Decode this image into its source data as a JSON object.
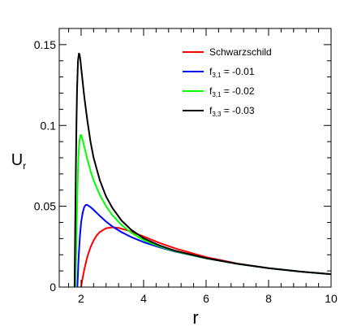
{
  "chart_data": {
    "type": "line",
    "xlabel": "r",
    "ylabel": {
      "main": "U",
      "sub": "r"
    },
    "xlim": [
      1.3,
      10
    ],
    "ylim": [
      0,
      0.16
    ],
    "xticks": [
      2,
      4,
      6,
      8,
      10
    ],
    "xtick_labels": [
      "2",
      "4",
      "6",
      "8",
      "10"
    ],
    "yticks": [
      0,
      0.05,
      0.1,
      0.15
    ],
    "ytick_labels": [
      "0",
      "0.05",
      "0.1",
      "0.15"
    ],
    "grid": false,
    "legend_position": "top-right",
    "series": [
      {
        "name": "Schwarzschild",
        "legend": {
          "main": "Schwarzschild",
          "sub": "",
          "rest": ""
        },
        "color": "#ff0000",
        "x": [
          2.0,
          2.05,
          2.1,
          2.2,
          2.3,
          2.4,
          2.5,
          2.6,
          2.8,
          3.0,
          3.2,
          3.5,
          4.0,
          4.5,
          5.0,
          6.0,
          7.0,
          8.0,
          9.0,
          10.0
        ],
        "y": [
          0.0,
          0.0057,
          0.0108,
          0.0188,
          0.0246,
          0.0289,
          0.032,
          0.0341,
          0.0364,
          0.037,
          0.0366,
          0.035,
          0.0313,
          0.0274,
          0.024,
          0.0185,
          0.0146,
          0.0117,
          0.0096,
          0.008
        ]
      },
      {
        "name": "f3,1 = -0.01",
        "legend": {
          "main": "f",
          "sub": "3,1",
          "rest": " = -0.01"
        },
        "color": "#0000ff",
        "x": [
          1.88,
          1.92,
          1.96,
          2.0,
          2.05,
          2.1,
          2.15,
          2.2,
          2.3,
          2.4,
          2.6,
          2.8,
          3.0,
          3.3,
          3.6,
          4.0,
          4.5,
          5.0,
          6.0,
          7.0,
          8.0,
          9.0,
          10.0
        ],
        "y": [
          0.0,
          0.018,
          0.031,
          0.04,
          0.046,
          0.0495,
          0.0508,
          0.0508,
          0.0495,
          0.0478,
          0.044,
          0.0405,
          0.0375,
          0.0339,
          0.031,
          0.0278,
          0.0247,
          0.022,
          0.0178,
          0.0144,
          0.0117,
          0.0096,
          0.008
        ]
      },
      {
        "name": "f3,1 = -0.02",
        "legend": {
          "main": "f",
          "sub": "3,1",
          "rest": " = -0.02"
        },
        "color": "#00ff00",
        "x": [
          1.82,
          1.85,
          1.88,
          1.9,
          1.92,
          1.95,
          1.98,
          2.0,
          2.05,
          2.1,
          2.2,
          2.3,
          2.4,
          2.6,
          2.8,
          3.0,
          3.3,
          3.6,
          4.0,
          4.5,
          5.0,
          6.0,
          7.0,
          8.0,
          9.0,
          10.0
        ],
        "y": [
          0.0,
          0.03,
          0.058,
          0.072,
          0.083,
          0.091,
          0.094,
          0.094,
          0.091,
          0.087,
          0.079,
          0.072,
          0.066,
          0.057,
          0.05,
          0.0445,
          0.0383,
          0.0337,
          0.029,
          0.0252,
          0.0222,
          0.0178,
          0.0144,
          0.0117,
          0.0096,
          0.008
        ]
      },
      {
        "name": "f3,3 = -0.03",
        "legend": {
          "main": "f",
          "sub": "3,3",
          "rest": " = -0.03"
        },
        "color": "#000000",
        "x": [
          1.79,
          1.81,
          1.83,
          1.85,
          1.87,
          1.9,
          1.93,
          1.95,
          1.98,
          2.0,
          2.05,
          2.1,
          2.2,
          2.3,
          2.4,
          2.6,
          2.8,
          3.0,
          3.3,
          3.6,
          4.0,
          4.5,
          5.0,
          6.0,
          7.0,
          8.0,
          9.0,
          10.0
        ],
        "y": [
          0.0,
          0.035,
          0.07,
          0.1,
          0.122,
          0.14,
          0.1445,
          0.144,
          0.14,
          0.136,
          0.127,
          0.118,
          0.103,
          0.09,
          0.08,
          0.066,
          0.056,
          0.049,
          0.041,
          0.0355,
          0.0302,
          0.0258,
          0.0225,
          0.0179,
          0.0144,
          0.0117,
          0.0096,
          0.008
        ]
      }
    ]
  }
}
